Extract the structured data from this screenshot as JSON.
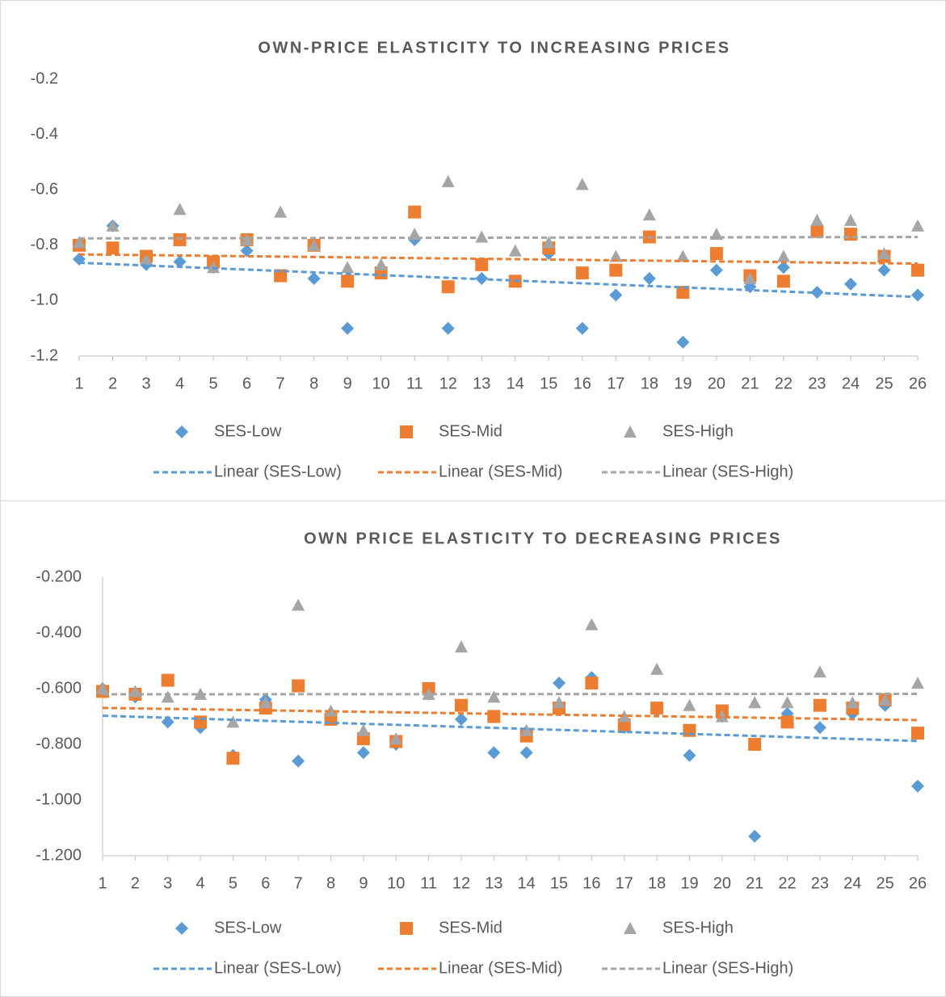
{
  "chart_data": [
    {
      "type": "scatter",
      "title": "OWN-PRICE ELASTICITY TO INCREASING PRICES",
      "x": [
        1,
        2,
        3,
        4,
        5,
        6,
        7,
        8,
        9,
        10,
        11,
        12,
        13,
        14,
        15,
        16,
        17,
        18,
        19,
        20,
        21,
        22,
        23,
        24,
        25,
        26
      ],
      "xlim": [
        1,
        26
      ],
      "xticks": [
        1,
        2,
        3,
        4,
        5,
        6,
        7,
        8,
        9,
        10,
        11,
        12,
        13,
        14,
        15,
        16,
        17,
        18,
        19,
        20,
        21,
        22,
        23,
        24,
        25,
        26
      ],
      "ylim": [
        -1.2,
        -0.2
      ],
      "yticks": [
        -0.2,
        -0.4,
        -0.6,
        -0.8,
        {
          "value": -1,
          "label": "-1.0"
        },
        -1.2
      ],
      "grid": false,
      "series": [
        {
          "name": "SES-Low",
          "trendline": "Linear (SES-Low)",
          "color": "#5b9bd5",
          "marker": "diamond",
          "values": [
            -0.85,
            -0.73,
            -0.87,
            -0.86,
            -0.88,
            -0.82,
            -0.91,
            -0.92,
            -1.1,
            -0.9,
            -0.78,
            -1.1,
            -0.92,
            -0.93,
            -0.83,
            -1.1,
            -0.98,
            -0.92,
            -1.15,
            -0.89,
            -0.95,
            -0.88,
            -0.97,
            -0.94,
            -0.89,
            -0.98
          ]
        },
        {
          "name": "SES-Mid",
          "trendline": "Linear (SES-Mid)",
          "color": "#ed7d31",
          "marker": "square",
          "values": [
            -0.8,
            -0.81,
            -0.84,
            -0.78,
            -0.86,
            -0.78,
            -0.91,
            -0.8,
            -0.93,
            -0.9,
            -0.68,
            -0.95,
            -0.87,
            -0.93,
            -0.81,
            -0.9,
            -0.89,
            -0.77,
            -0.97,
            -0.83,
            -0.91,
            -0.93,
            -0.75,
            -0.76,
            -0.84,
            -0.89
          ]
        },
        {
          "name": "SES-High",
          "trendline": "Linear (SES-High)",
          "color": "#a5a5a5",
          "marker": "triangle",
          "values": [
            -0.79,
            -0.73,
            -0.85,
            -0.67,
            -0.88,
            -0.78,
            -0.68,
            -0.8,
            -0.88,
            -0.87,
            -0.76,
            -0.57,
            -0.77,
            -0.82,
            -0.79,
            -0.58,
            -0.84,
            -0.69,
            -0.84,
            -0.76,
            -0.92,
            -0.84,
            -0.71,
            -0.71,
            -0.83,
            -0.73
          ]
        }
      ]
    },
    {
      "type": "scatter",
      "title": "OWN PRICE ELASTICITY TO DECREASING PRICES",
      "x": [
        1,
        2,
        3,
        4,
        5,
        6,
        7,
        8,
        9,
        10,
        11,
        12,
        13,
        14,
        15,
        16,
        17,
        18,
        19,
        20,
        21,
        22,
        23,
        24,
        25,
        26
      ],
      "xlim": [
        1,
        26
      ],
      "xticks": [
        1,
        2,
        3,
        4,
        5,
        6,
        7,
        8,
        9,
        10,
        11,
        12,
        13,
        14,
        15,
        16,
        17,
        18,
        19,
        20,
        21,
        22,
        23,
        24,
        25,
        26
      ],
      "ylim": [
        -1.2,
        -0.2
      ],
      "yticks": [
        {
          "value": -0.2,
          "label": "-0.200"
        },
        {
          "value": -0.4,
          "label": "-0.400"
        },
        {
          "value": -0.6,
          "label": "-0.600"
        },
        {
          "value": -0.8,
          "label": "-0.800"
        },
        {
          "value": -1,
          "label": "-1.000"
        },
        {
          "value": -1.2,
          "label": "-1.200"
        }
      ],
      "grid": false,
      "series": [
        {
          "name": "SES-Low",
          "trendline": "Linear (SES-Low)",
          "color": "#5b9bd5",
          "marker": "diamond",
          "values": [
            -0.6,
            -0.63,
            -0.72,
            -0.74,
            -0.84,
            -0.64,
            -0.86,
            -0.7,
            -0.83,
            -0.8,
            -0.62,
            -0.71,
            -0.83,
            -0.83,
            -0.58,
            -0.56,
            -0.74,
            -0.68,
            -0.84,
            -0.7,
            -1.13,
            -0.69,
            -0.74,
            -0.69,
            -0.66,
            -0.95
          ]
        },
        {
          "name": "SES-Mid",
          "trendline": "Linear (SES-Mid)",
          "color": "#ed7d31",
          "marker": "square",
          "values": [
            -0.61,
            -0.62,
            -0.57,
            -0.72,
            -0.85,
            -0.67,
            -0.59,
            -0.71,
            -0.78,
            -0.79,
            -0.6,
            -0.66,
            -0.7,
            -0.77,
            -0.67,
            -0.58,
            -0.73,
            -0.67,
            -0.75,
            -0.68,
            -0.8,
            -0.72,
            -0.66,
            -0.67,
            -0.64,
            -0.76
          ]
        },
        {
          "name": "SES-High",
          "trendline": "Linear (SES-High)",
          "color": "#a5a5a5",
          "marker": "triangle",
          "values": [
            -0.6,
            -0.61,
            -0.63,
            -0.62,
            -0.72,
            -0.65,
            -0.3,
            -0.68,
            -0.75,
            -0.78,
            -0.62,
            -0.45,
            -0.63,
            -0.75,
            -0.65,
            -0.37,
            -0.7,
            -0.53,
            -0.66,
            -0.7,
            -0.65,
            -0.65,
            -0.54,
            -0.65,
            -0.64,
            -0.58
          ]
        }
      ]
    }
  ]
}
